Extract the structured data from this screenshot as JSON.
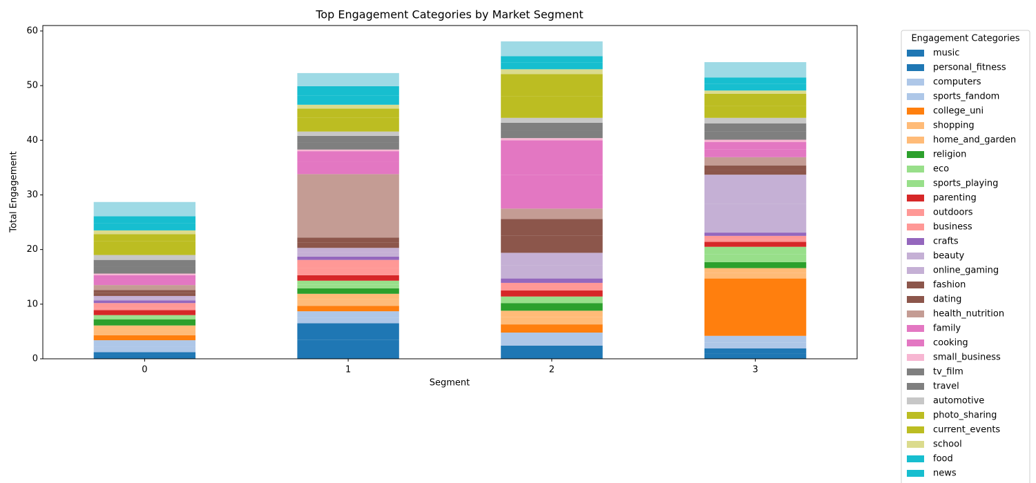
{
  "chart_data": {
    "type": "stacked_bar",
    "title": "Top Engagement Categories by Market Segment",
    "x_label": "Segment",
    "y_label": "Total Engagement",
    "legend_title": "Engagement Categories",
    "categories": [
      "0",
      "1",
      "2",
      "3"
    ],
    "ylim": [
      0,
      61
    ],
    "yticks": [
      0,
      10,
      20,
      30,
      40,
      50,
      60
    ],
    "series": [
      {
        "name": "music",
        "color": "#1f77b4",
        "values": [
          0.7,
          3.5,
          1.2,
          1.0
        ]
      },
      {
        "name": "personal_fitness",
        "color": "#1f77b4",
        "values": [
          0.5,
          3.0,
          1.2,
          0.9
        ]
      },
      {
        "name": "computers",
        "color": "#aec7e8",
        "values": [
          1.0,
          1.0,
          1.2,
          1.1
        ]
      },
      {
        "name": "sports_fandom",
        "color": "#aec7e8",
        "values": [
          1.2,
          1.2,
          1.2,
          1.2
        ]
      },
      {
        "name": "college_uni",
        "color": "#ff7f0e",
        "values": [
          0.9,
          1.0,
          1.5,
          10.5
        ]
      },
      {
        "name": "shopping",
        "color": "#ffbb78",
        "values": [
          1.0,
          1.2,
          1.3,
          1.0
        ]
      },
      {
        "name": "home_and_garden",
        "color": "#ffbb78",
        "values": [
          0.8,
          1.0,
          1.2,
          0.9
        ]
      },
      {
        "name": "religion",
        "color": "#2ca02c",
        "values": [
          1.1,
          1.0,
          1.4,
          1.1
        ]
      },
      {
        "name": "eco",
        "color": "#98df8a",
        "values": [
          0.4,
          0.7,
          0.6,
          1.4
        ]
      },
      {
        "name": "sports_playing",
        "color": "#98df8a",
        "values": [
          0.4,
          0.7,
          0.6,
          1.4
        ]
      },
      {
        "name": "parenting",
        "color": "#d62728",
        "values": [
          0.9,
          1.0,
          1.1,
          0.9
        ]
      },
      {
        "name": "outdoors",
        "color": "#ff9896",
        "values": [
          0.4,
          1.3,
          0.7,
          0.5
        ]
      },
      {
        "name": "business",
        "color": "#ff9896",
        "values": [
          0.9,
          1.5,
          0.7,
          0.6
        ]
      },
      {
        "name": "crafts",
        "color": "#9467bd",
        "values": [
          0.5,
          0.6,
          0.8,
          0.6
        ]
      },
      {
        "name": "beauty",
        "color": "#c5b0d5",
        "values": [
          0.4,
          0.8,
          2.4,
          5.3
        ]
      },
      {
        "name": "online_gaming",
        "color": "#c5b0d5",
        "values": [
          0.4,
          0.8,
          2.3,
          5.3
        ]
      },
      {
        "name": "fashion",
        "color": "#8c564b",
        "values": [
          0.6,
          1.0,
          3.1,
          0.9
        ]
      },
      {
        "name": "dating",
        "color": "#8c564b",
        "values": [
          0.5,
          0.9,
          3.1,
          0.8
        ]
      },
      {
        "name": "health_nutrition",
        "color": "#c49c94",
        "values": [
          0.9,
          11.6,
          1.9,
          1.5
        ]
      },
      {
        "name": "family",
        "color": "#e377c2",
        "values": [
          0.9,
          2.2,
          6.2,
          1.4
        ]
      },
      {
        "name": "cooking",
        "color": "#e377c2",
        "values": [
          0.9,
          2.0,
          6.3,
          1.4
        ]
      },
      {
        "name": "small_business",
        "color": "#f7b6d2",
        "values": [
          0.3,
          0.3,
          0.4,
          0.4
        ]
      },
      {
        "name": "tv_film",
        "color": "#7f7f7f",
        "values": [
          1.2,
          1.3,
          1.4,
          1.5
        ]
      },
      {
        "name": "travel",
        "color": "#7f7f7f",
        "values": [
          1.3,
          1.2,
          1.4,
          1.5
        ]
      },
      {
        "name": "automotive",
        "color": "#c7c7c7",
        "values": [
          0.9,
          0.8,
          0.9,
          1.0
        ]
      },
      {
        "name": "photo_sharing",
        "color": "#bcbd22",
        "values": [
          2.5,
          2.5,
          4.0,
          2.2
        ]
      },
      {
        "name": "current_events",
        "color": "#bcbd22",
        "values": [
          1.3,
          1.7,
          4.0,
          2.2
        ]
      },
      {
        "name": "school",
        "color": "#dbdb8d",
        "values": [
          0.7,
          0.7,
          0.9,
          0.6
        ]
      },
      {
        "name": "food",
        "color": "#17becf",
        "values": [
          1.3,
          1.7,
          1.2,
          1.2
        ]
      },
      {
        "name": "news",
        "color": "#17becf",
        "values": [
          1.3,
          1.7,
          1.2,
          1.2
        ]
      },
      {
        "name": null,
        "color": "#9edae5",
        "values": [
          2.6,
          2.4,
          2.7,
          2.8
        ]
      }
    ]
  }
}
